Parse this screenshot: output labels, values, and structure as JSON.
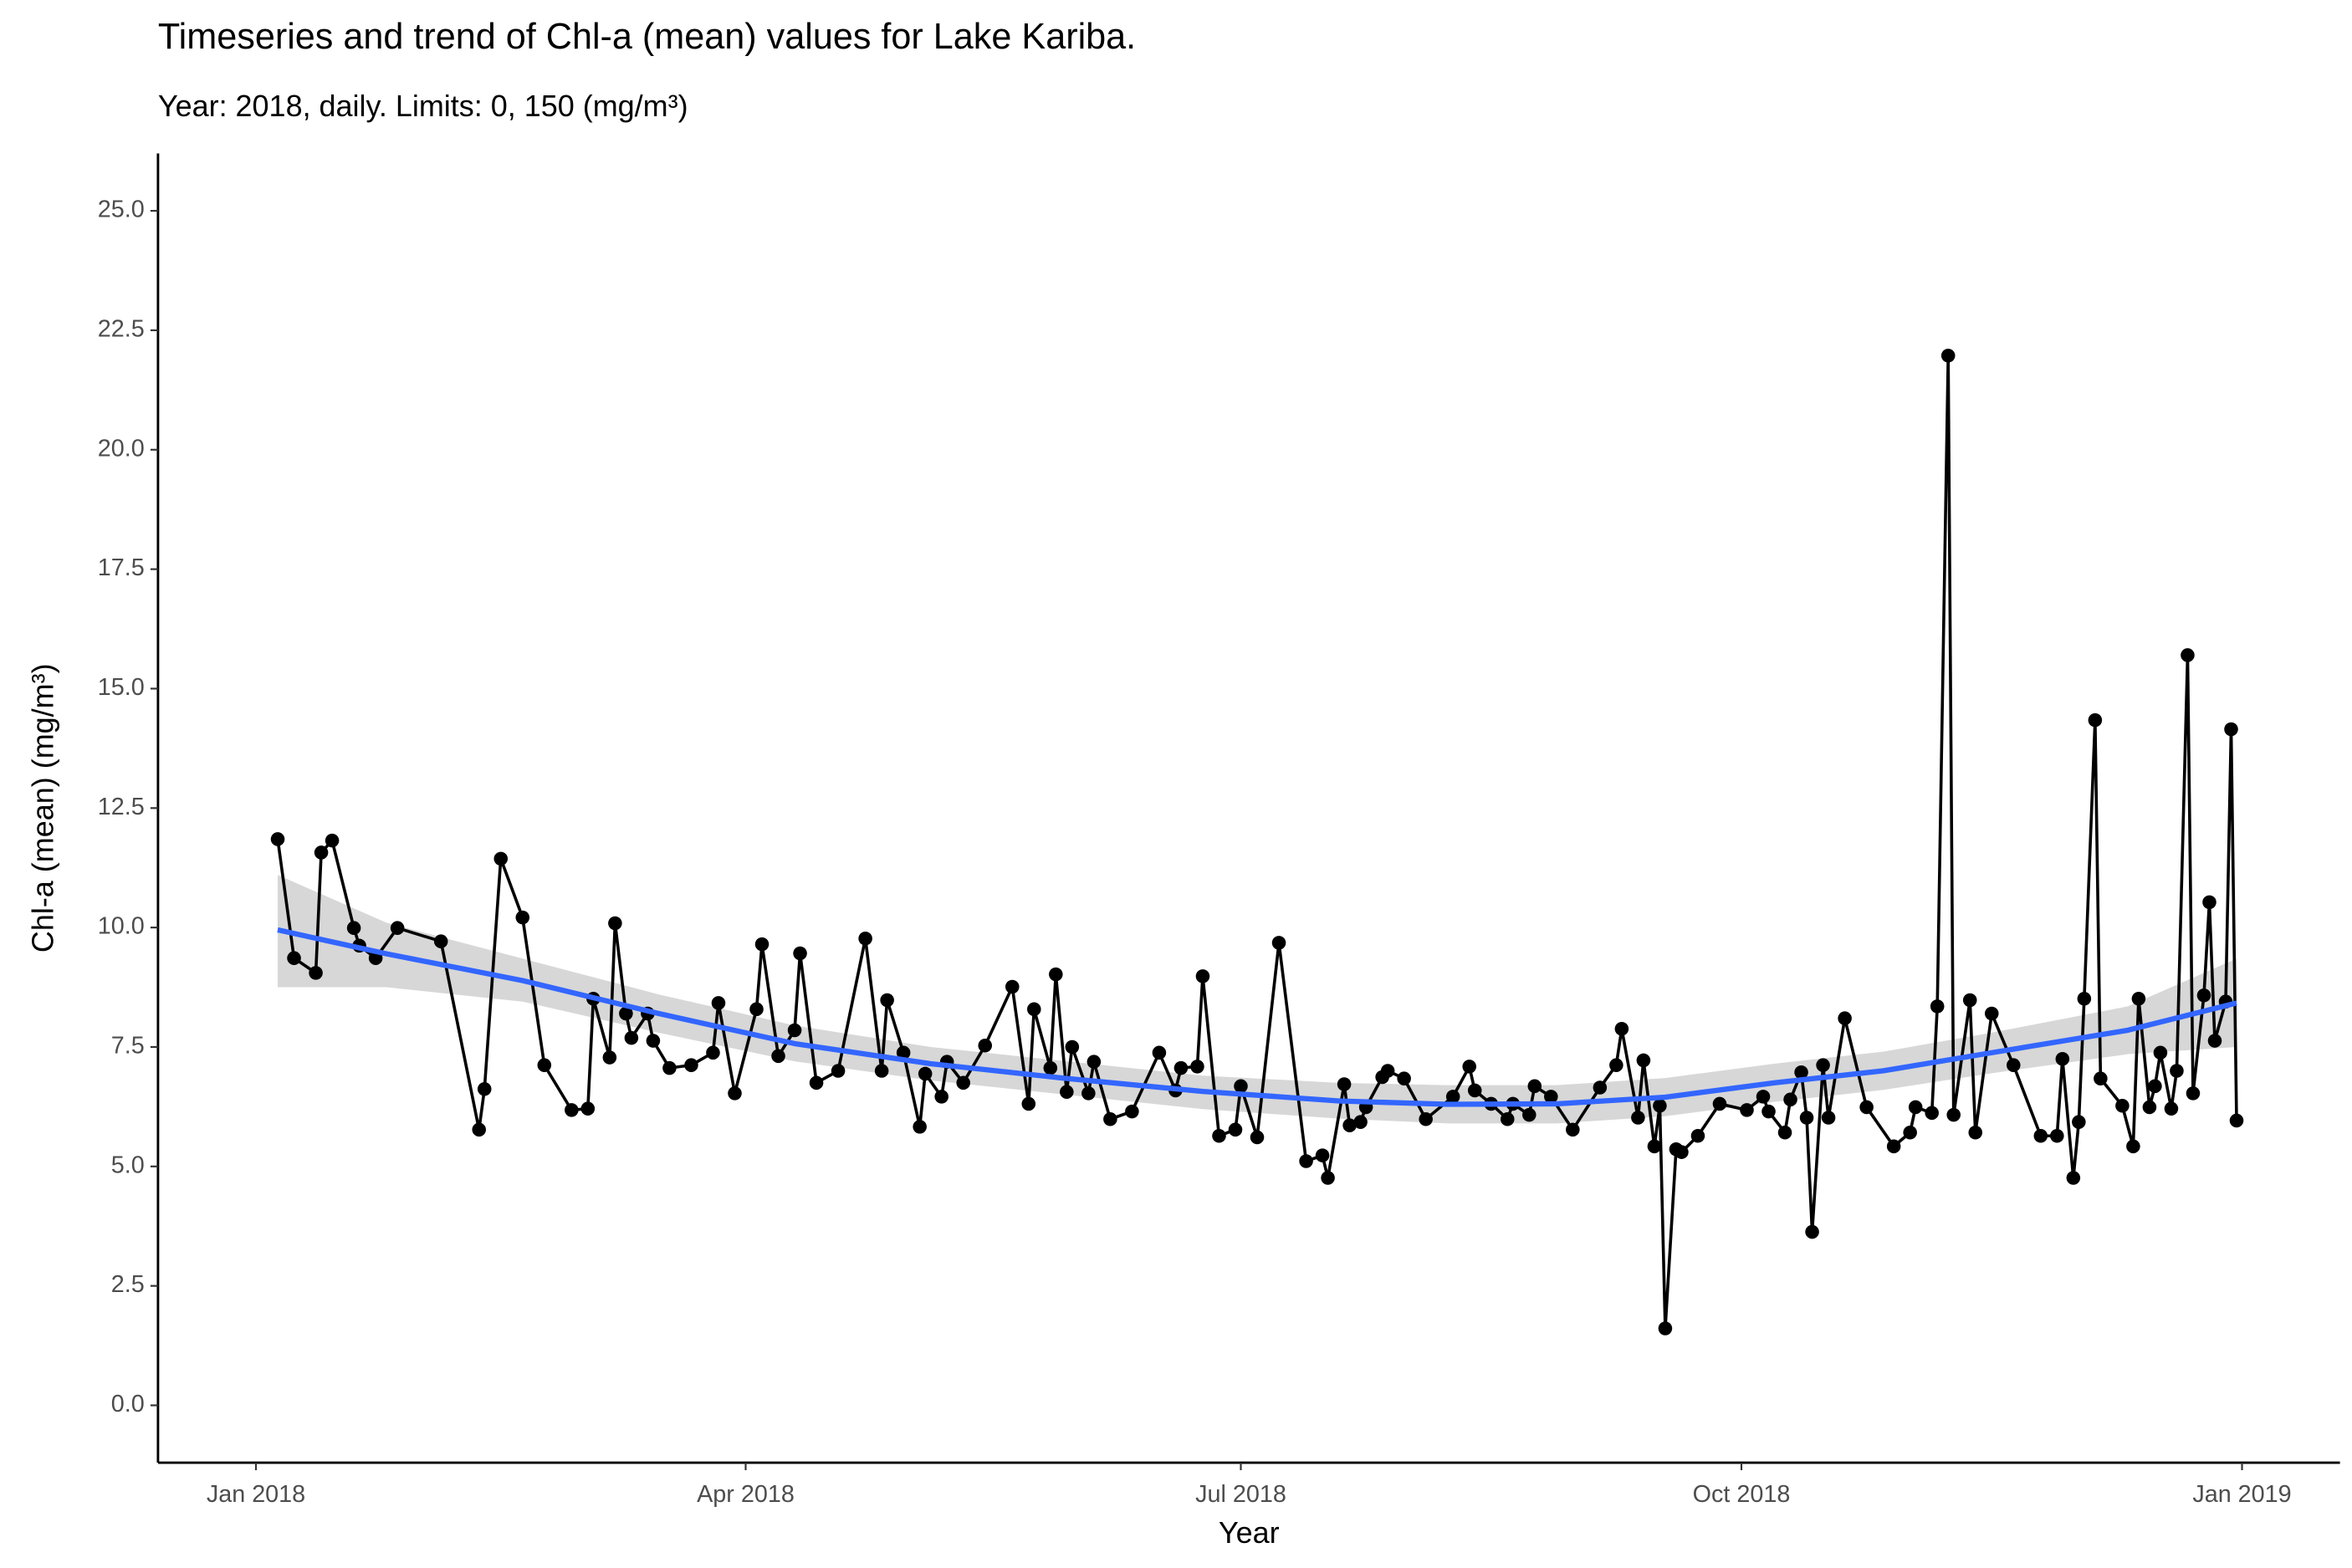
{
  "chart_data": {
    "type": "line",
    "title": "Timeseries and trend of Chl-a (mean) values for Lake Kariba.",
    "subtitle": "Year: 2018, daily. Limits: 0, 150 (mg/m³)",
    "x_label": "Year",
    "y_label": "Chl-a (mean) (mg/m³)",
    "xlim": [
      -17,
      384
    ],
    "ylim": [
      -1.2,
      26.2
    ],
    "xticks": [
      {
        "value": 1,
        "label": "Jan 2018"
      },
      {
        "value": 91,
        "label": "Apr 2018"
      },
      {
        "value": 182,
        "label": "Jul 2018"
      },
      {
        "value": 274,
        "label": "Oct 2018"
      },
      {
        "value": 366,
        "label": "Jan 2019"
      }
    ],
    "yticks": [
      {
        "value": 0,
        "label": "0.0"
      },
      {
        "value": 2.5,
        "label": "2.5"
      },
      {
        "value": 5,
        "label": "5.0"
      },
      {
        "value": 7.5,
        "label": "7.5"
      },
      {
        "value": 10,
        "label": "10.0"
      },
      {
        "value": 12.5,
        "label": "12.5"
      },
      {
        "value": 15,
        "label": "15.0"
      },
      {
        "value": 17.5,
        "label": "17.5"
      },
      {
        "value": 20,
        "label": "20.0"
      },
      {
        "value": 22.5,
        "label": "22.5"
      },
      {
        "value": 25,
        "label": "25.0"
      }
    ],
    "grid": false,
    "series": [
      {
        "color": "#000000",
        "x": [
          5,
          8,
          12,
          13,
          15,
          19,
          20,
          23,
          27,
          35,
          42,
          43,
          46,
          50,
          54,
          59,
          62,
          63,
          66,
          67,
          69,
          70,
          73,
          74,
          77,
          81,
          85,
          86,
          89,
          93,
          94,
          97,
          100,
          101,
          104,
          108,
          113,
          116,
          117,
          120,
          123,
          124,
          127,
          128,
          131,
          135,
          140,
          143,
          144,
          147,
          148,
          150,
          151,
          154,
          155,
          158,
          162,
          167,
          170,
          171,
          174,
          175,
          178,
          181,
          182,
          185,
          189,
          194,
          197,
          198,
          201,
          202,
          204,
          205,
          208,
          209,
          212,
          216,
          221,
          224,
          225,
          228,
          231,
          232,
          235,
          236,
          239,
          243,
          248,
          251,
          252,
          255,
          256,
          258,
          259,
          260,
          262,
          263,
          266,
          270,
          275,
          278,
          279,
          282,
          283,
          285,
          286,
          287,
          289,
          290,
          293,
          297,
          302,
          305,
          306,
          309,
          310,
          312,
          313,
          316,
          317,
          320,
          324,
          329,
          332,
          333,
          335,
          336,
          337,
          339,
          340,
          344,
          346,
          347,
          349,
          350,
          351,
          353,
          354,
          356,
          357,
          359,
          360,
          361,
          363,
          364,
          365
        ],
        "values": [
          11.85,
          9.36,
          9.05,
          11.57,
          11.82,
          9.99,
          9.62,
          9.36,
          9.99,
          9.71,
          5.77,
          6.62,
          11.44,
          10.21,
          7.12,
          6.18,
          6.21,
          8.51,
          7.28,
          10.09,
          8.2,
          7.69,
          8.2,
          7.63,
          7.06,
          7.12,
          7.38,
          8.42,
          6.53,
          8.29,
          9.65,
          7.31,
          7.85,
          9.46,
          6.75,
          7.0,
          9.77,
          7.0,
          8.48,
          7.38,
          5.83,
          6.94,
          6.46,
          7.19,
          6.75,
          7.53,
          8.76,
          6.31,
          8.29,
          7.06,
          9.02,
          6.56,
          7.5,
          6.53,
          7.19,
          5.99,
          6.15,
          7.38,
          6.59,
          7.06,
          7.09,
          8.98,
          5.64,
          5.77,
          6.68,
          5.61,
          9.68,
          5.11,
          5.23,
          4.76,
          6.72,
          5.86,
          5.93,
          6.24,
          6.87,
          7.0,
          6.84,
          5.99,
          6.46,
          7.09,
          6.59,
          6.31,
          5.99,
          6.31,
          6.08,
          6.68,
          6.46,
          5.77,
          6.65,
          7.12,
          7.88,
          6.02,
          7.22,
          5.42,
          6.27,
          1.61,
          5.36,
          5.3,
          5.64,
          6.31,
          6.18,
          6.46,
          6.15,
          5.71,
          6.4,
          6.97,
          6.02,
          3.63,
          7.12,
          6.02,
          8.1,
          6.24,
          5.42,
          5.71,
          6.24,
          6.12,
          8.35,
          21.97,
          6.08,
          8.48,
          5.71,
          8.2,
          7.12,
          5.64,
          5.64,
          7.25,
          4.76,
          5.93,
          8.51,
          14.34,
          6.84,
          6.27,
          5.42,
          8.51,
          6.24,
          6.68,
          7.38,
          6.21,
          7.0,
          15.7,
          6.53,
          8.58,
          10.53,
          7.63,
          8.45,
          14.15,
          5.96
        ]
      }
    ],
    "trend": {
      "color": "#3366ff",
      "band_color": "#bdbdbd",
      "x": [
        5,
        25,
        50,
        75,
        100,
        125,
        150,
        175,
        200,
        220,
        240,
        260,
        280,
        300,
        320,
        345,
        365
      ],
      "values": [
        9.95,
        9.45,
        8.89,
        8.2,
        7.57,
        7.15,
        6.84,
        6.57,
        6.37,
        6.3,
        6.31,
        6.45,
        6.75,
        7.0,
        7.38,
        7.85,
        8.42
      ],
      "lower": [
        8.75,
        8.75,
        8.45,
        7.8,
        7.2,
        6.8,
        6.5,
        6.2,
        6.0,
        5.9,
        5.9,
        6.05,
        6.35,
        6.6,
        6.95,
        7.35,
        7.5
      ],
      "upper": [
        11.1,
        10.1,
        9.35,
        8.6,
        7.95,
        7.5,
        7.2,
        6.9,
        6.75,
        6.7,
        6.7,
        6.85,
        7.15,
        7.4,
        7.8,
        8.35,
        9.35
      ]
    }
  }
}
